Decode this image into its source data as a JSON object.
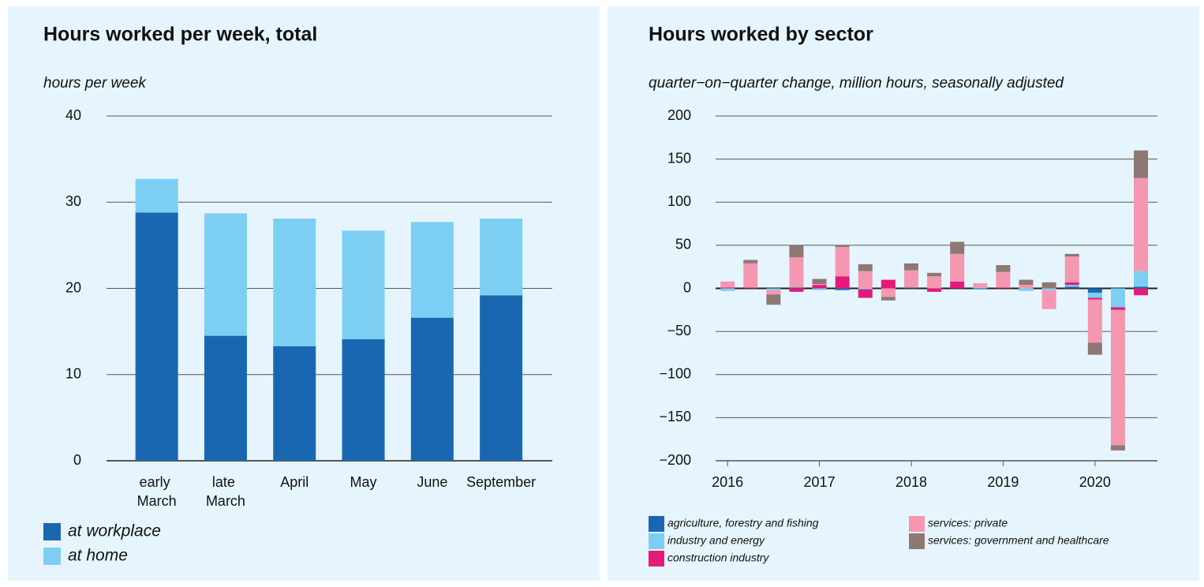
{
  "chart_data": [
    {
      "type": "bar",
      "stacked": true,
      "title": "Hours worked per week, total",
      "subtitle": "hours per week",
      "categories": [
        "early March",
        "late March",
        "April",
        "May",
        "June",
        "September"
      ],
      "series": [
        {
          "name": "at workplace",
          "color": "#1a67b1",
          "values": [
            28.8,
            14.5,
            13.3,
            14.1,
            16.6,
            19.2
          ]
        },
        {
          "name": "at home",
          "color": "#7dcef3",
          "values": [
            3.9,
            14.2,
            14.8,
            12.6,
            11.1,
            8.9
          ]
        }
      ],
      "ylim": [
        0,
        40
      ],
      "yticks": [
        0,
        10,
        20,
        30,
        40
      ],
      "grid": true,
      "legend": "bottom-left"
    },
    {
      "type": "bar",
      "stacked": true,
      "title": "Hours worked by sector",
      "subtitle": "quarter−on−quarter change, million hours, seasonally adjusted",
      "x": [
        2016,
        2016.25,
        2016.5,
        2016.75,
        2017,
        2017.25,
        2017.5,
        2017.75,
        2018,
        2018.25,
        2018.5,
        2018.75,
        2019,
        2019.25,
        2019.5,
        2019.75,
        2020,
        2020.25,
        2020.5
      ],
      "series": [
        {
          "name": "agriculture, forestry and fishing",
          "color": "#1a67b1",
          "values": [
            0,
            0,
            0,
            1,
            0,
            -2,
            0,
            0,
            1,
            0,
            0,
            -1,
            0,
            0,
            0,
            2,
            -5,
            0,
            2
          ]
        },
        {
          "name": "industry and energy",
          "color": "#7dcef3",
          "values": [
            -3,
            0,
            -2,
            0,
            -2,
            0,
            -1,
            0,
            0,
            0,
            0,
            1,
            0,
            -3,
            -2,
            2,
            -6,
            -22,
            18
          ]
        },
        {
          "name": "construction industry",
          "color": "#e5197a",
          "values": [
            1,
            1,
            0,
            -4,
            4,
            14,
            -10,
            10,
            0,
            -4,
            8,
            0,
            1,
            0,
            0,
            3,
            -2,
            -3,
            -8
          ]
        },
        {
          "name": "services: private",
          "color": "#f597b0",
          "values": [
            7,
            28,
            -5,
            35,
            1,
            34,
            20,
            -10,
            20,
            14,
            32,
            5,
            18,
            4,
            -22,
            30,
            -50,
            -157,
            108
          ]
        },
        {
          "name": "services: government and healthcare",
          "color": "#8e7873",
          "values": [
            0,
            4,
            -12,
            14,
            6,
            2,
            8,
            -4,
            8,
            4,
            14,
            0,
            8,
            6,
            7,
            3,
            -14,
            -6,
            32
          ]
        }
      ],
      "xlim": [
        2015.87,
        2020.68
      ],
      "xticks": [
        2016,
        2017,
        2018,
        2019,
        2020
      ],
      "ylim": [
        -200,
        200
      ],
      "yticks": [
        {
          "value": -200,
          "label": "−200"
        },
        {
          "value": -150,
          "label": "−150"
        },
        {
          "value": -100,
          "label": "−100"
        },
        {
          "value": -50,
          "label": "−50"
        },
        0,
        50,
        100,
        150,
        200
      ],
      "grid": true,
      "legend": "bottom"
    }
  ]
}
